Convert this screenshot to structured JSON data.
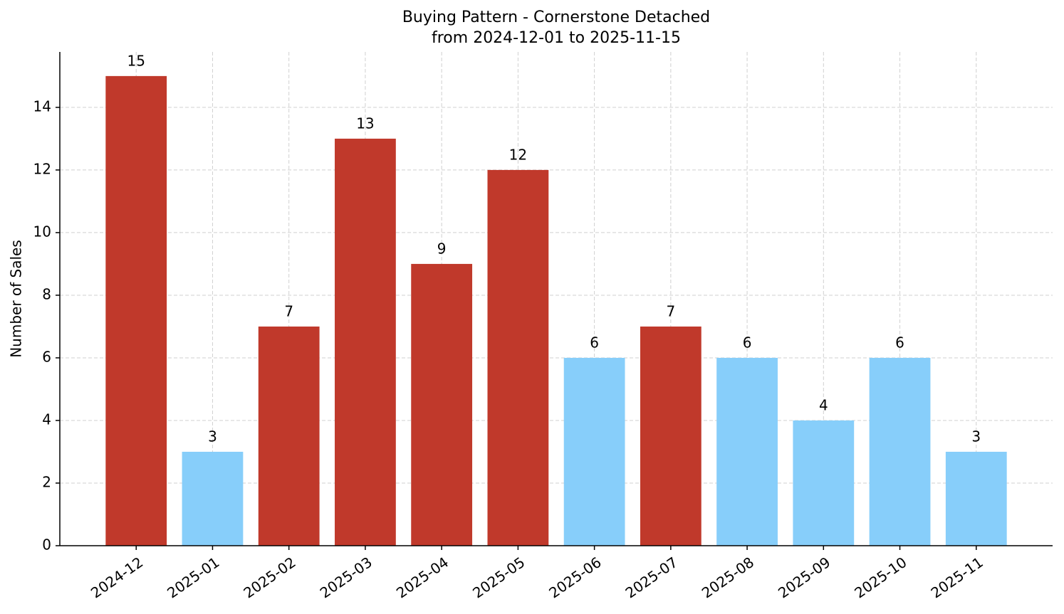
{
  "chart_data": {
    "type": "bar",
    "title": "Buying Pattern - Cornerstone Detached",
    "subtitle": "from 2024-12-01 to 2025-11-15",
    "y_label": "Number of Sales",
    "categories": [
      "2024-12",
      "2025-01",
      "2025-02",
      "2025-03",
      "2025-04",
      "2025-05",
      "2025-06",
      "2025-07",
      "2025-08",
      "2025-09",
      "2025-10",
      "2025-11"
    ],
    "values": [
      15,
      3,
      7,
      13,
      9,
      12,
      6,
      7,
      6,
      4,
      6,
      3
    ],
    "colors": [
      "#c0392b",
      "#87cefa",
      "#c0392b",
      "#c0392b",
      "#c0392b",
      "#c0392b",
      "#87cefa",
      "#c0392b",
      "#87cefa",
      "#87cefa",
      "#87cefa",
      "#87cefa"
    ],
    "ylim": [
      0,
      15.77
    ],
    "yticks": [
      0,
      2,
      4,
      6,
      8,
      10,
      12,
      14
    ],
    "grid": true
  }
}
